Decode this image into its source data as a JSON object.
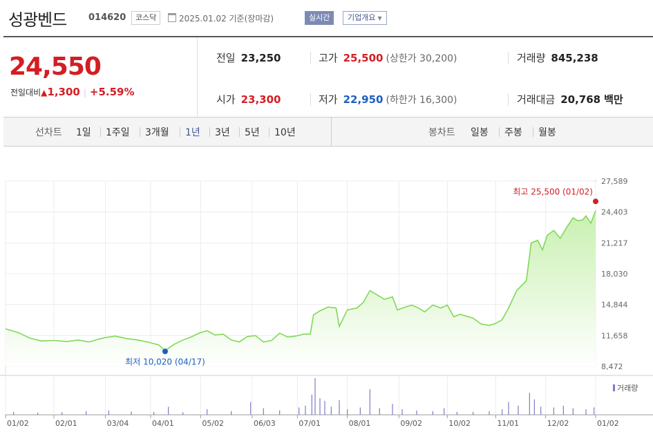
{
  "header": {
    "stock_name": "성광벤드",
    "stock_code": "014620",
    "market": "코스닥",
    "as_of": "2025.01.02 기준(장마감)",
    "realtime_button": "실시간",
    "company_overview_button": "기업개요",
    "caret": "▼"
  },
  "quote": {
    "price": "24,550",
    "change_label": "전일대비",
    "change_arrow": "▲",
    "change_amount": "1,300",
    "change_percent": "+5.59%",
    "prev_close_label": "전일",
    "prev_close": "23,250",
    "high_label": "고가",
    "high": "25,500",
    "upper_limit": "(상한가 30,200)",
    "volume_label": "거래량",
    "volume": "845,238",
    "open_label": "시가",
    "open": "23,300",
    "low_label": "저가",
    "low": "22,950",
    "lower_limit": "(하한가 16,300)",
    "trade_value_label": "거래대금",
    "trade_value": "20,768",
    "trade_value_unit": "백만"
  },
  "tabs": {
    "line_chart_label": "선차트",
    "periods": [
      "1일",
      "1주일",
      "3개월",
      "1년",
      "3년",
      "5년",
      "10년"
    ],
    "selected_period": "1년",
    "candle_chart_label": "봉차트",
    "candle_periods": [
      "일봉",
      "주봉",
      "월봉"
    ]
  },
  "colors": {
    "up": "#d31e24",
    "down": "#1b5fc1",
    "line": "#7ed957",
    "area_top": "#c8f0b0",
    "volume": "#7c7ac9"
  },
  "volume_legend": "거래량",
  "chart_data": {
    "type": "area",
    "ylim": [
      8472,
      27589
    ],
    "yticks": [
      "27,589",
      "24,403",
      "21,217",
      "18,030",
      "14,844",
      "11,658",
      "8,472"
    ],
    "ytick_values": [
      27589,
      24403,
      21217,
      18030,
      14844,
      11658,
      8472
    ],
    "xticks": [
      "01/02",
      "02/01",
      "03/04",
      "04/01",
      "05/02",
      "06/03",
      "07/01",
      "08/01",
      "09/02",
      "10/02",
      "11/01",
      "12/02",
      "01/02"
    ],
    "x_days": [
      0,
      30,
      62,
      90,
      121,
      153,
      181,
      212,
      244,
      274,
      304,
      335,
      366
    ],
    "series": [
      {
        "points": [
          [
            0,
            12350
          ],
          [
            8,
            11950
          ],
          [
            15,
            11400
          ],
          [
            22,
            11100
          ],
          [
            30,
            11150
          ],
          [
            38,
            11050
          ],
          [
            45,
            11200
          ],
          [
            52,
            11000
          ],
          [
            58,
            11300
          ],
          [
            62,
            11450
          ],
          [
            68,
            11600
          ],
          [
            75,
            11350
          ],
          [
            82,
            11200
          ],
          [
            88,
            11000
          ],
          [
            95,
            10700
          ],
          [
            99,
            10100
          ],
          [
            104,
            10700
          ],
          [
            110,
            11200
          ],
          [
            115,
            11500
          ],
          [
            120,
            11900
          ],
          [
            125,
            12150
          ],
          [
            130,
            11700
          ],
          [
            135,
            11800
          ],
          [
            140,
            11200
          ],
          [
            145,
            11000
          ],
          [
            150,
            11550
          ],
          [
            155,
            11650
          ],
          [
            160,
            11000
          ],
          [
            165,
            11150
          ],
          [
            170,
            11900
          ],
          [
            175,
            11500
          ],
          [
            180,
            11600
          ],
          [
            185,
            11800
          ],
          [
            189,
            11800
          ],
          [
            191,
            13800
          ],
          [
            195,
            14200
          ],
          [
            200,
            14600
          ],
          [
            205,
            14500
          ],
          [
            207,
            12600
          ],
          [
            212,
            14300
          ],
          [
            218,
            14500
          ],
          [
            222,
            15100
          ],
          [
            226,
            16300
          ],
          [
            230,
            15900
          ],
          [
            235,
            15400
          ],
          [
            240,
            15650
          ],
          [
            243,
            14300
          ],
          [
            248,
            14600
          ],
          [
            252,
            14800
          ],
          [
            256,
            14500
          ],
          [
            260,
            14100
          ],
          [
            265,
            14800
          ],
          [
            270,
            14500
          ],
          [
            274,
            14800
          ],
          [
            278,
            13600
          ],
          [
            282,
            13850
          ],
          [
            290,
            13450
          ],
          [
            295,
            12850
          ],
          [
            300,
            12700
          ],
          [
            304,
            12900
          ],
          [
            308,
            13300
          ],
          [
            312,
            14500
          ],
          [
            317,
            16300
          ],
          [
            323,
            17300
          ],
          [
            326,
            21200
          ],
          [
            330,
            21500
          ],
          [
            333,
            20500
          ],
          [
            336,
            22000
          ],
          [
            340,
            22500
          ],
          [
            344,
            21700
          ],
          [
            348,
            22800
          ],
          [
            352,
            23800
          ],
          [
            355,
            23500
          ],
          [
            358,
            23600
          ],
          [
            360,
            24000
          ],
          [
            363,
            23250
          ],
          [
            366,
            24550
          ]
        ]
      }
    ],
    "volume": [
      [
        5,
        0.08
      ],
      [
        20,
        0.06
      ],
      [
        35,
        0.07
      ],
      [
        50,
        0.1
      ],
      [
        64,
        0.12
      ],
      [
        78,
        0.09
      ],
      [
        92,
        0.08
      ],
      [
        101,
        0.22
      ],
      [
        110,
        0.07
      ],
      [
        125,
        0.15
      ],
      [
        140,
        0.1
      ],
      [
        152,
        0.35
      ],
      [
        160,
        0.18
      ],
      [
        170,
        0.12
      ],
      [
        182,
        0.2
      ],
      [
        186,
        0.25
      ],
      [
        190,
        0.55
      ],
      [
        192,
        1.0
      ],
      [
        195,
        0.45
      ],
      [
        198,
        0.38
      ],
      [
        202,
        0.22
      ],
      [
        207,
        0.4
      ],
      [
        212,
        0.15
      ],
      [
        220,
        0.2
      ],
      [
        226,
        0.7
      ],
      [
        232,
        0.18
      ],
      [
        240,
        0.3
      ],
      [
        246,
        0.15
      ],
      [
        255,
        0.12
      ],
      [
        265,
        0.1
      ],
      [
        272,
        0.18
      ],
      [
        280,
        0.08
      ],
      [
        290,
        0.08
      ],
      [
        300,
        0.1
      ],
      [
        308,
        0.15
      ],
      [
        312,
        0.35
      ],
      [
        318,
        0.25
      ],
      [
        325,
        0.6
      ],
      [
        328,
        0.42
      ],
      [
        332,
        0.22
      ],
      [
        340,
        0.2
      ],
      [
        346,
        0.25
      ],
      [
        352,
        0.18
      ],
      [
        360,
        0.15
      ],
      [
        365,
        0.2
      ]
    ],
    "high_annotation": "최고 25,500 (01/02)",
    "high_point": [
      366,
      25500
    ],
    "low_annotation": "최저 10,020 (04/17)",
    "low_point": [
      99,
      10020
    ]
  }
}
